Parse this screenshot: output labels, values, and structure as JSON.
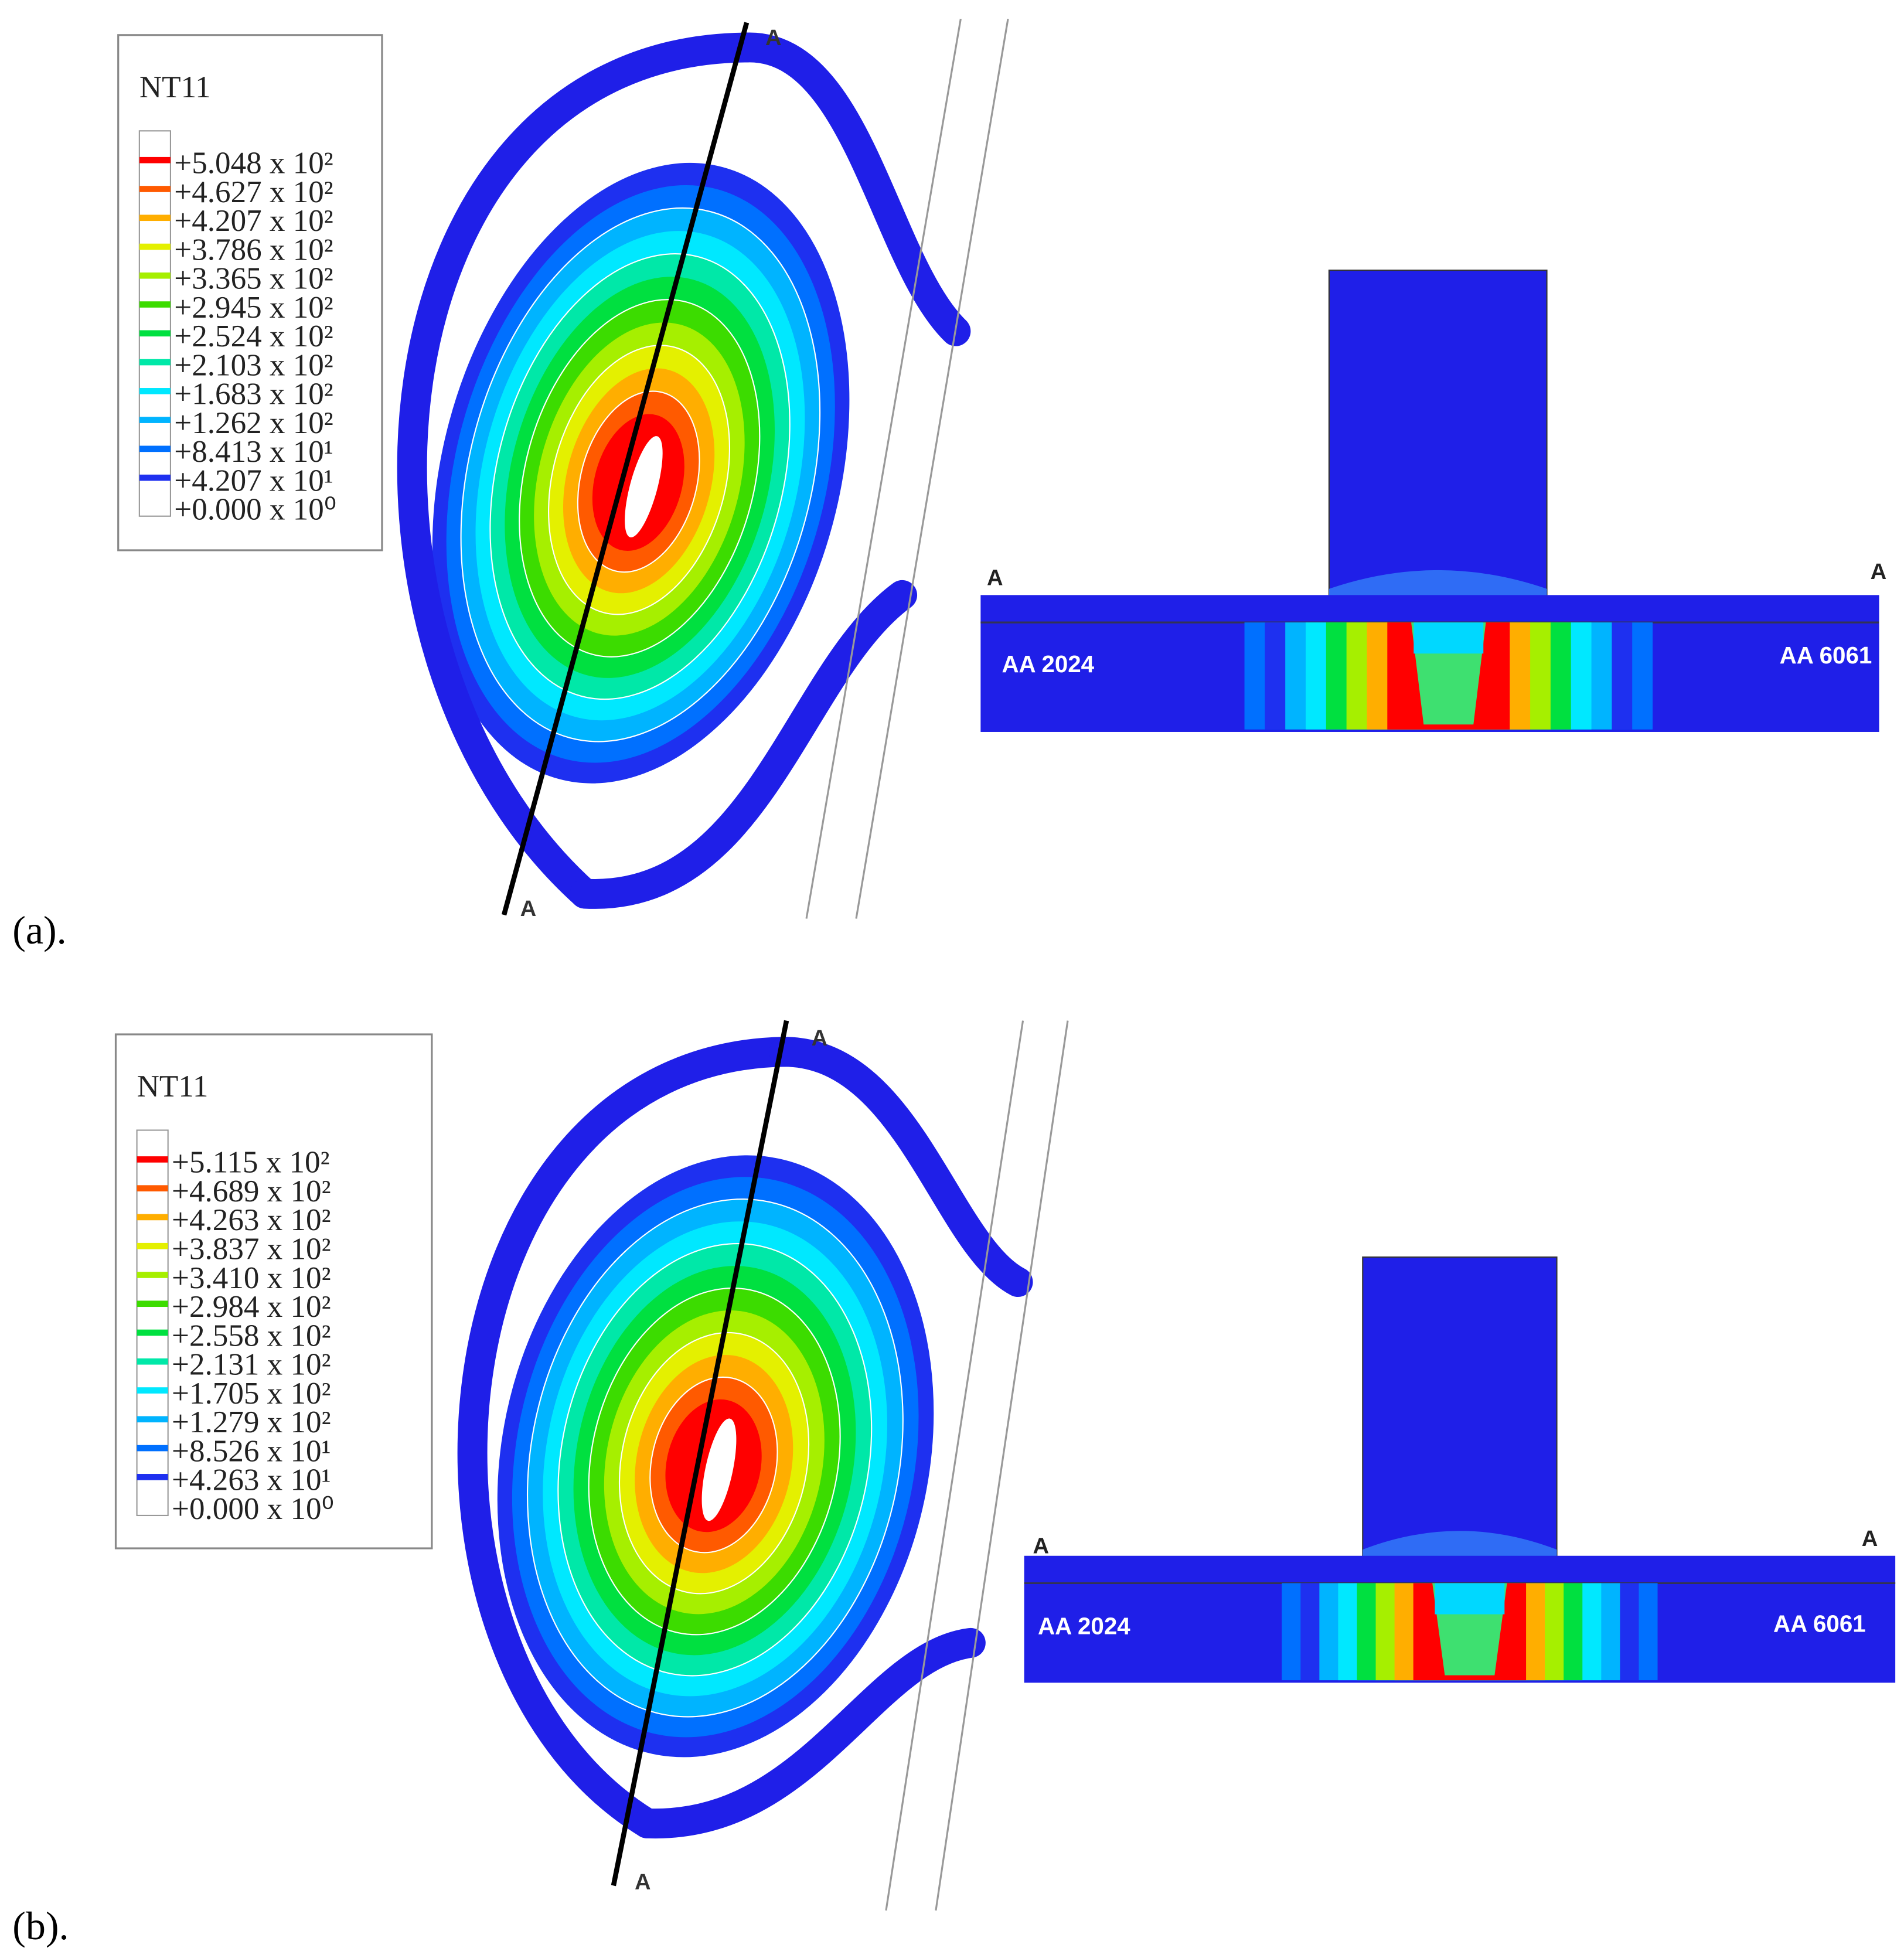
{
  "panels": [
    {
      "label": "(a).",
      "legend": {
        "title": "NT11",
        "entries": [
          "+5.048 x 10²",
          "+4.627 x 10²",
          "+4.207 x 10²",
          "+3.786 x 10²",
          "+3.365 x 10²",
          "+2.945 x 10²",
          "+2.524 x 10²",
          "+2.103 x 10²",
          "+1.683 x 10²",
          "+1.262 x 10²",
          "+8.413 x 10¹",
          "+4.207 x 10¹",
          "+0.000 x 10⁰"
        ]
      },
      "section_line_labels": [
        "A",
        "A"
      ],
      "cross_section": {
        "labels": [
          "A",
          "A"
        ],
        "materials": [
          "AA 2024",
          "AA 6061"
        ]
      }
    },
    {
      "label": "(b).",
      "legend": {
        "title": "NT11",
        "entries": [
          "+5.115 x 10²",
          "+4.689 x 10²",
          "+4.263 x 10²",
          "+3.837 x 10²",
          "+3.410 x 10²",
          "+2.984 x 10²",
          "+2.558 x 10²",
          "+2.131 x 10²",
          "+1.705 x 10²",
          "+1.279 x 10²",
          "+8.526 x 10¹",
          "+4.263 x 10¹",
          "+0.000 x 10⁰"
        ]
      },
      "section_line_labels": [
        "A",
        "A"
      ],
      "cross_section": {
        "labels": [
          "A",
          "A"
        ],
        "materials": [
          "AA 2024",
          "AA 6061"
        ]
      }
    }
  ]
}
